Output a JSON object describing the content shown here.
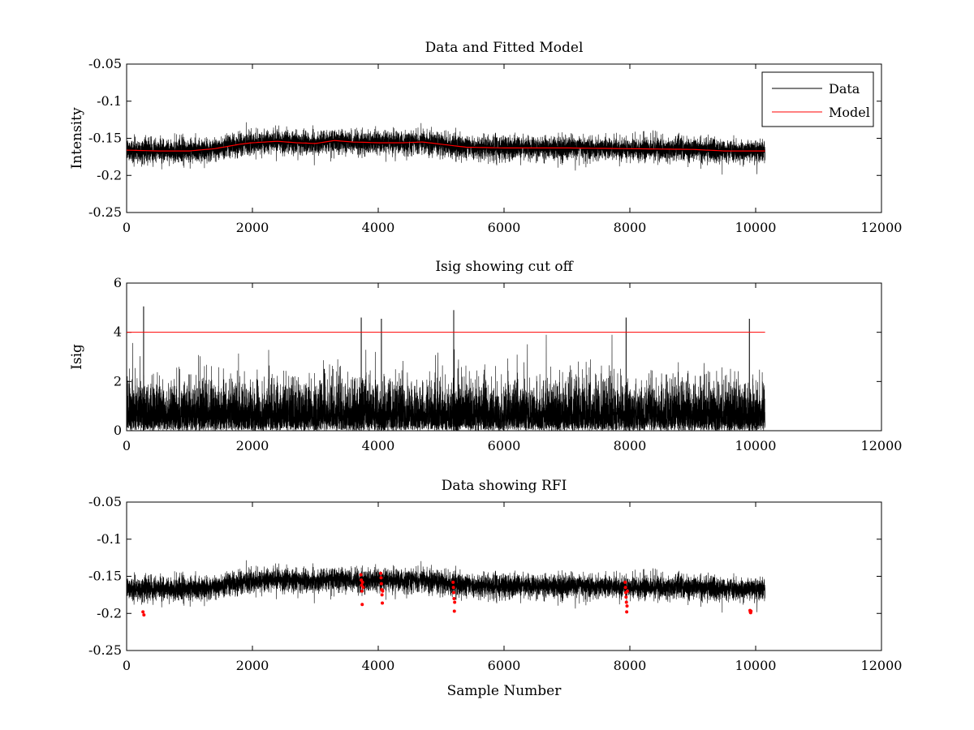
{
  "figure": {
    "colors": {
      "data": "#000000",
      "model": "#ff0000",
      "cutoff": "#ff0000",
      "rfi": "#ff0000"
    },
    "series_n_samples": 10150
  },
  "chart_data": [
    {
      "id": "top",
      "type": "line",
      "title": "Data and Fitted Model",
      "xlabel": "",
      "ylabel": "Intensity",
      "xlim": [
        0,
        12000
      ],
      "ylim": [
        -0.25,
        -0.05
      ],
      "y_reversed": true,
      "xticks": [
        0,
        2000,
        4000,
        6000,
        8000,
        10000,
        12000
      ],
      "xtick_labels": [
        "0",
        "2000",
        "4000",
        "6000",
        "8000",
        "10000",
        "12000"
      ],
      "yticks": [
        -0.25,
        -0.2,
        -0.15,
        -0.1,
        -0.05
      ],
      "ytick_labels": [
        "-0.25",
        "-0.2",
        "-0.15",
        "-0.1",
        "-0.05"
      ],
      "legend": {
        "placement": "top-right",
        "entries": [
          "Data",
          "Model"
        ]
      },
      "series": [
        {
          "name": "Data",
          "kind": "noisy",
          "x_range": [
            0,
            10150
          ],
          "noise_sd": 0.009
        },
        {
          "name": "Model",
          "kind": "line",
          "x": [
            0,
            500,
            1000,
            1400,
            1800,
            2000,
            2400,
            2700,
            3000,
            3300,
            3600,
            4000,
            4400,
            4700,
            5000,
            5400,
            6000,
            7000,
            8000,
            9000,
            9500,
            10150
          ],
          "y": [
            -0.166,
            -0.167,
            -0.167,
            -0.164,
            -0.158,
            -0.156,
            -0.154,
            -0.156,
            -0.157,
            -0.153,
            -0.155,
            -0.156,
            -0.156,
            -0.155,
            -0.158,
            -0.162,
            -0.163,
            -0.163,
            -0.164,
            -0.165,
            -0.167,
            -0.167
          ]
        }
      ],
      "dips": [
        {
          "x": 270,
          "y": -0.2
        },
        {
          "x": 9920,
          "y": -0.198
        }
      ]
    },
    {
      "id": "middle",
      "type": "line",
      "title": "Isig showing cut off",
      "xlabel": "",
      "ylabel": "Isig",
      "xlim": [
        0,
        12000
      ],
      "ylim": [
        0,
        6
      ],
      "xticks": [
        0,
        2000,
        4000,
        6000,
        8000,
        10000,
        12000
      ],
      "xtick_labels": [
        "0",
        "2000",
        "4000",
        "6000",
        "8000",
        "10000",
        "12000"
      ],
      "yticks": [
        0,
        2,
        4,
        6
      ],
      "ytick_labels": [
        "0",
        "2",
        "4",
        "6"
      ],
      "cutoff": {
        "value": 4,
        "x_range": [
          0,
          10150
        ]
      },
      "series": [
        {
          "name": "Isig",
          "kind": "noisy_abs",
          "x_range": [
            0,
            10150
          ]
        }
      ],
      "spikes": [
        {
          "x": 270,
          "y": 5.05
        },
        {
          "x": 3730,
          "y": 4.6
        },
        {
          "x": 4050,
          "y": 4.55
        },
        {
          "x": 5200,
          "y": 4.9
        },
        {
          "x": 7940,
          "y": 4.6
        },
        {
          "x": 9900,
          "y": 4.55
        }
      ]
    },
    {
      "id": "bottom",
      "type": "scatter",
      "title": "Data showing RFI",
      "xlabel": "Sample Number",
      "ylabel": "",
      "xlim": [
        0,
        12000
      ],
      "ylim": [
        -0.25,
        -0.05
      ],
      "y_reversed": true,
      "xticks": [
        0,
        2000,
        4000,
        6000,
        8000,
        10000,
        12000
      ],
      "xtick_labels": [
        "0",
        "2000",
        "4000",
        "6000",
        "8000",
        "10000",
        "12000"
      ],
      "yticks": [
        -0.25,
        -0.2,
        -0.15,
        -0.1,
        -0.05
      ],
      "ytick_labels": [
        "-0.25",
        "-0.2",
        "-0.15",
        "-0.1",
        "-0.05"
      ],
      "series": [
        {
          "name": "Data",
          "kind": "noisy",
          "x_range": [
            0,
            10150
          ],
          "noise_sd": 0.009
        }
      ],
      "rfi_points": [
        {
          "x": 260,
          "y": -0.198
        },
        {
          "x": 275,
          "y": -0.202
        },
        {
          "x": 3725,
          "y": -0.148
        },
        {
          "x": 3730,
          "y": -0.155
        },
        {
          "x": 3735,
          "y": -0.162
        },
        {
          "x": 3740,
          "y": -0.17
        },
        {
          "x": 3745,
          "y": -0.188
        },
        {
          "x": 3750,
          "y": -0.158
        },
        {
          "x": 3760,
          "y": -0.165
        },
        {
          "x": 4040,
          "y": -0.146
        },
        {
          "x": 4045,
          "y": -0.152
        },
        {
          "x": 4050,
          "y": -0.16
        },
        {
          "x": 4055,
          "y": -0.168
        },
        {
          "x": 4060,
          "y": -0.175
        },
        {
          "x": 4065,
          "y": -0.186
        },
        {
          "x": 4070,
          "y": -0.17
        },
        {
          "x": 5190,
          "y": -0.158
        },
        {
          "x": 5195,
          "y": -0.165
        },
        {
          "x": 5200,
          "y": -0.172
        },
        {
          "x": 5205,
          "y": -0.18
        },
        {
          "x": 5210,
          "y": -0.197
        },
        {
          "x": 5215,
          "y": -0.185
        },
        {
          "x": 7925,
          "y": -0.158
        },
        {
          "x": 7930,
          "y": -0.165
        },
        {
          "x": 7935,
          "y": -0.172
        },
        {
          "x": 7940,
          "y": -0.178
        },
        {
          "x": 7945,
          "y": -0.185
        },
        {
          "x": 7950,
          "y": -0.198
        },
        {
          "x": 7955,
          "y": -0.19
        },
        {
          "x": 7960,
          "y": -0.17
        },
        {
          "x": 9910,
          "y": -0.196
        },
        {
          "x": 9915,
          "y": -0.198
        },
        {
          "x": 9920,
          "y": -0.199
        },
        {
          "x": 9925,
          "y": -0.197
        }
      ],
      "dips": [
        {
          "x": 270,
          "y": -0.2
        },
        {
          "x": 9920,
          "y": -0.198
        }
      ]
    }
  ]
}
